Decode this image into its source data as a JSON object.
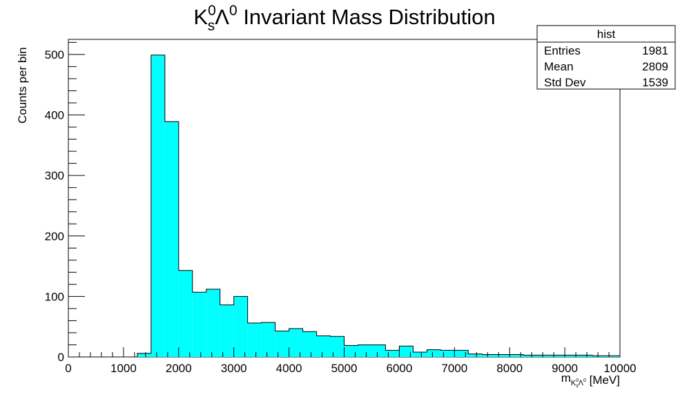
{
  "chart_data": {
    "type": "bar",
    "title": {
      "main": "K",
      "sup1": "0",
      "sub1": "s",
      "lambda": "Λ",
      "sup2": "0",
      "rest": " Invariant Mass Distribution"
    },
    "xlabel": {
      "main": "m",
      "sub": "K",
      "subsup": "0",
      "subsub": "s",
      "sub2": "Λ",
      "sub2sup": "0",
      "unit": " [MeV]"
    },
    "ylabel": "Counts per bin",
    "xlim": [
      0,
      10000
    ],
    "ylim": [
      0,
      525
    ],
    "x_ticks": [
      0,
      1000,
      2000,
      3000,
      4000,
      5000,
      6000,
      7000,
      8000,
      9000,
      10000
    ],
    "y_ticks": [
      0,
      100,
      200,
      300,
      400,
      500
    ],
    "bin_width": 250,
    "bin_starts": [
      1250,
      1500,
      1750,
      2000,
      2250,
      2500,
      2750,
      3000,
      3250,
      3500,
      3750,
      4000,
      4250,
      4500,
      4750,
      5000,
      5250,
      5500,
      5750,
      6000,
      6250,
      6500,
      6750,
      7000,
      7250,
      7500,
      7750,
      8000,
      8250,
      8500,
      8750,
      9000,
      9250,
      9500,
      9750
    ],
    "values": [
      6,
      499,
      389,
      143,
      107,
      112,
      86,
      100,
      56,
      57,
      43,
      47,
      42,
      35,
      34,
      19,
      20,
      20,
      11,
      18,
      8,
      12,
      11,
      11,
      5,
      4,
      4,
      4,
      3,
      3,
      3,
      3,
      3,
      2,
      2
    ],
    "fill_color": "#00ffff",
    "line_color": "#000000",
    "stats_box": {
      "title": "hist",
      "rows": [
        {
          "label": "Entries",
          "value": "1981"
        },
        {
          "label": "Mean",
          "value": "2809"
        },
        {
          "label": "Std Dev",
          "value": "1539"
        }
      ],
      "placement": "top-right"
    }
  }
}
